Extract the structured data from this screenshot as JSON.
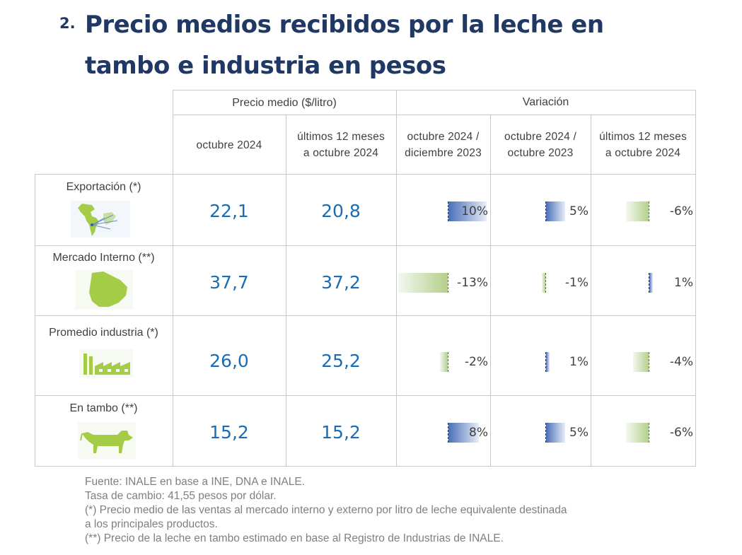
{
  "title": {
    "number": "2.",
    "line1": "Precio medios recibidos por la leche en",
    "line2": "tambo e industria en pesos"
  },
  "table": {
    "group_headers": {
      "price": "Precio medio ($/litro)",
      "variation": "Variación"
    },
    "sub_headers": [
      {
        "line1": "octubre 2024",
        "line2": ""
      },
      {
        "line1": "últimos 12 meses",
        "line2": "a octubre 2024"
      },
      {
        "line1": "octubre 2024 /",
        "line2": "diciembre 2023"
      },
      {
        "line1": "octubre 2024 /",
        "line2": "octubre 2023"
      },
      {
        "line1": "últimos 12 meses",
        "line2": "a octubre 2024"
      }
    ],
    "rows": [
      {
        "label": "Exportación (*)",
        "icon": "americas-map-icon",
        "oct": "22,1",
        "last12": "20,8",
        "var": [
          {
            "text": "10%",
            "value": 10
          },
          {
            "text": "5%",
            "value": 5
          },
          {
            "text": "-6%",
            "value": -6
          }
        ]
      },
      {
        "label": "Mercado Interno (**)",
        "icon": "uruguay-map-icon",
        "oct": "37,7",
        "last12": "37,2",
        "var": [
          {
            "text": "-13%",
            "value": -13
          },
          {
            "text": "-1%",
            "value": -1
          },
          {
            "text": "1%",
            "value": 1
          }
        ]
      },
      {
        "label": "Promedio industria (*)",
        "icon": "factory-icon",
        "oct": "26,0",
        "last12": "25,2",
        "var": [
          {
            "text": "-2%",
            "value": -2
          },
          {
            "text": "1%",
            "value": 1
          },
          {
            "text": "-4%",
            "value": -4
          }
        ]
      },
      {
        "label": "En tambo (**)",
        "icon": "cow-icon",
        "oct": "15,2",
        "last12": "15,2",
        "var": [
          {
            "text": "8%",
            "value": 8
          },
          {
            "text": "5%",
            "value": 5
          },
          {
            "text": "-6%",
            "value": -6
          }
        ]
      }
    ]
  },
  "colors": {
    "title": "#1f3864",
    "value_blue": "#1a6db5",
    "bar_positive": "#4a6fb8",
    "bar_negative": "#b3cf8c",
    "icon_green": "#a4cc46"
  },
  "footer": {
    "line1": "Fuente: INALE en base a INE, DNA e INALE.",
    "line2": "Tasa de cambio: 41,55 pesos por dólar.",
    "line3": "(*) Precio medio de las ventas al mercado interno y externo por litro de leche equivalente destinada",
    "line4": "a los principales productos.",
    "line5": "(**) Precio de la leche en tambo estimado en base al Registro de Industrias de INALE."
  }
}
